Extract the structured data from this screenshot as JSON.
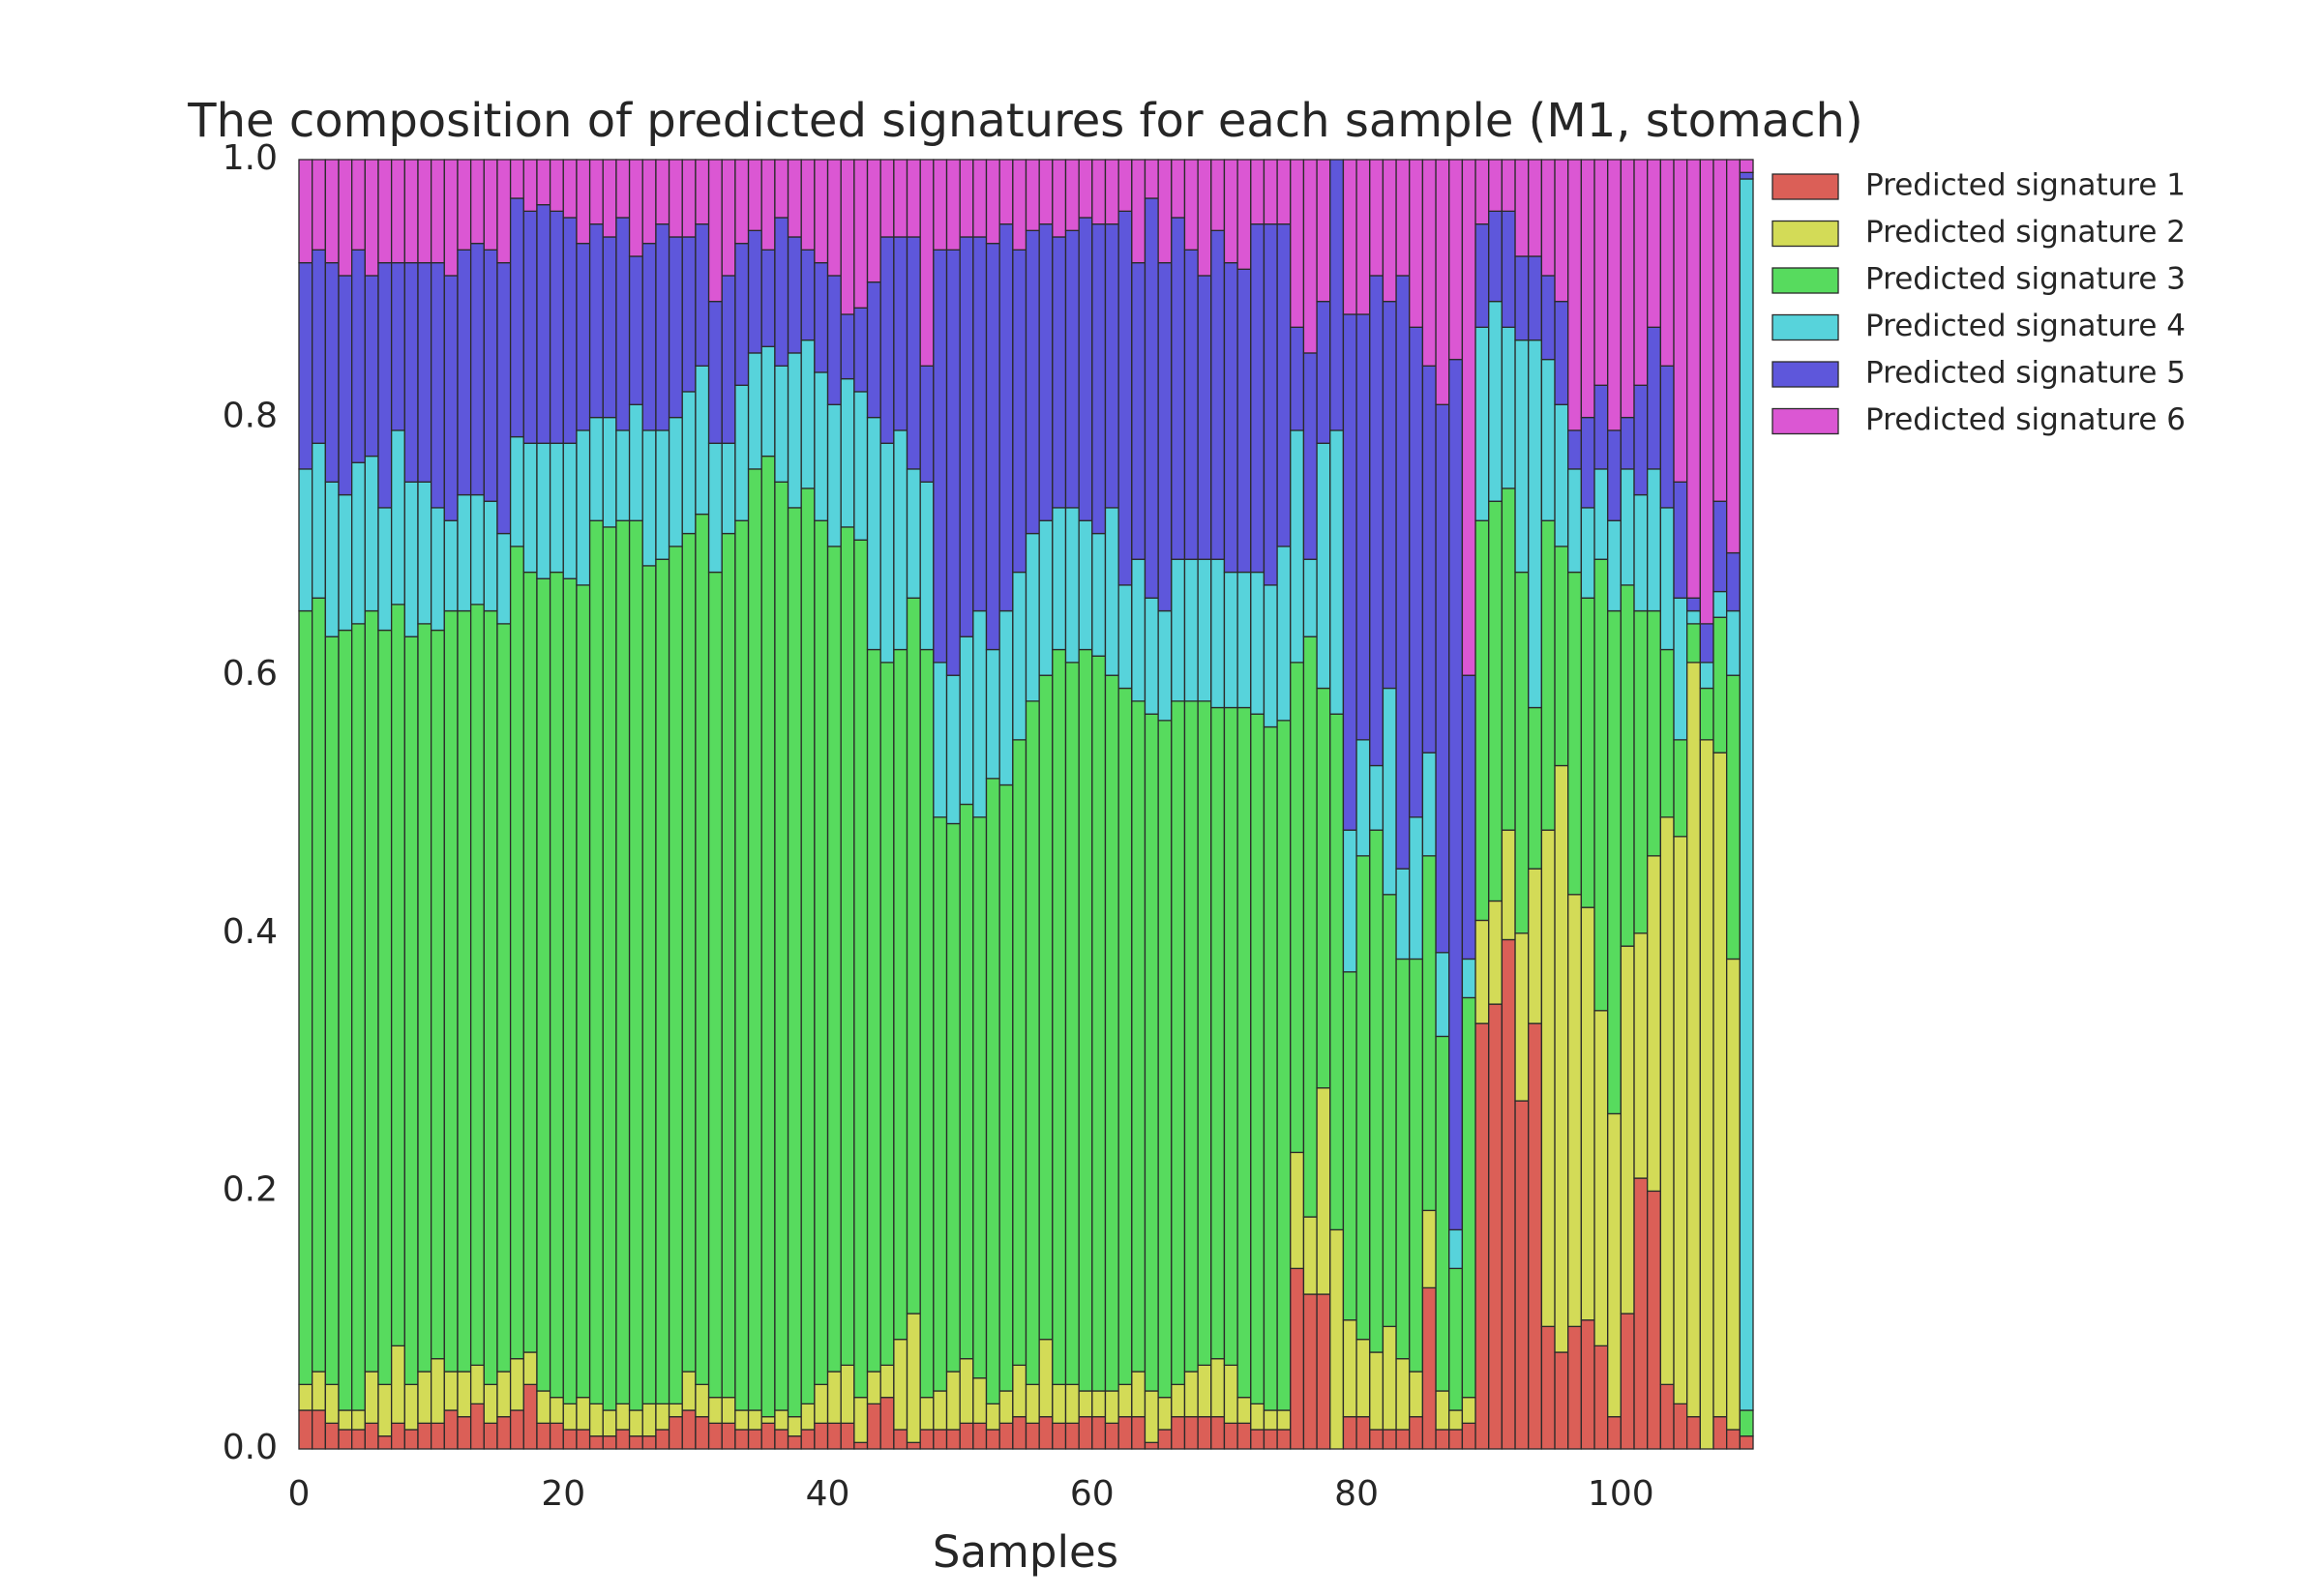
{
  "chart_data": {
    "type": "stacked_bar",
    "title": "The composition of predicted signatures for each sample (M1, stomach)",
    "x_label": "Samples",
    "x": [
      0,
      1,
      2,
      3,
      4,
      5,
      6,
      7,
      8,
      9,
      10,
      11,
      12,
      13,
      14,
      15,
      16,
      17,
      18,
      19,
      20,
      21,
      22,
      23,
      24,
      25,
      26,
      27,
      28,
      29,
      30,
      31,
      32,
      33,
      34,
      35,
      36,
      37,
      38,
      39,
      40,
      41,
      42,
      43,
      44,
      45,
      46,
      47,
      48,
      49,
      50,
      51,
      52,
      53,
      54,
      55,
      56,
      57,
      58,
      59,
      60,
      61,
      62,
      63,
      64,
      65,
      66,
      67,
      68,
      69,
      70,
      71,
      72,
      73,
      74,
      75,
      76,
      77,
      78,
      79,
      80,
      81,
      82,
      83,
      84,
      85,
      86,
      87,
      88,
      89,
      90,
      91,
      92,
      93,
      94,
      95,
      96,
      97,
      98,
      99,
      100,
      101,
      102,
      103,
      104,
      105,
      106,
      107,
      108,
      109
    ],
    "xlim": [
      0,
      110
    ],
    "xticks": [
      0,
      20,
      40,
      60,
      80,
      100
    ],
    "ylim": [
      0,
      1
    ],
    "yticks": [
      {
        "value": 0,
        "label": "0.0"
      },
      {
        "value": 0.2,
        "label": "0.2"
      },
      {
        "value": 0.4,
        "label": "0.4"
      },
      {
        "value": 0.6,
        "label": "0.6"
      },
      {
        "value": 0.8,
        "label": "0.8"
      },
      {
        "value": 1,
        "label": "1.0"
      }
    ],
    "legend": "outside-right",
    "series": [
      {
        "name": "Predicted signature 1",
        "color": "#db5f57",
        "values": [
          0.03,
          0.03,
          0.02,
          0.015,
          0.015,
          0.02,
          0.01,
          0.02,
          0.015,
          0.02,
          0.02,
          0.03,
          0.025,
          0.035,
          0.02,
          0.025,
          0.03,
          0.05,
          0.02,
          0.02,
          0.015,
          0.015,
          0.01,
          0.01,
          0.015,
          0.01,
          0.01,
          0.015,
          0.025,
          0.03,
          0.025,
          0.02,
          0.02,
          0.015,
          0.015,
          0.02,
          0.015,
          0.01,
          0.015,
          0.02,
          0.02,
          0.02,
          0.005,
          0.035,
          0.04,
          0.015,
          0.005,
          0.015,
          0.015,
          0.015,
          0.02,
          0.02,
          0.015,
          0.02,
          0.025,
          0.02,
          0.025,
          0.02,
          0.02,
          0.025,
          0.025,
          0.02,
          0.025,
          0.025,
          0.005,
          0.015,
          0.025,
          0.025,
          0.025,
          0.025,
          0.02,
          0.02,
          0.015,
          0.015,
          0.015,
          0.14,
          0.12,
          0.12,
          0,
          0.025,
          0.025,
          0.015,
          0.015,
          0.015,
          0.025,
          0.125,
          0.015,
          0.015,
          0.02,
          0.33,
          0.345,
          0.395,
          0.27,
          0.33,
          0.095,
          0.075,
          0.095,
          0.1,
          0.08,
          0.025,
          0.105,
          0.21,
          0.2,
          0.05,
          0.035,
          0.025,
          0,
          0.025,
          0.015,
          0.01
        ]
      },
      {
        "name": "Predicted signature 2",
        "color": "#d3db57",
        "values": [
          0.02,
          0.03,
          0.03,
          0.015,
          0.015,
          0.04,
          0.04,
          0.06,
          0.035,
          0.04,
          0.05,
          0.03,
          0.035,
          0.03,
          0.03,
          0.035,
          0.04,
          0.025,
          0.025,
          0.02,
          0.02,
          0.025,
          0.025,
          0.02,
          0.02,
          0.02,
          0.025,
          0.02,
          0.01,
          0.03,
          0.025,
          0.02,
          0.02,
          0.015,
          0.015,
          0.005,
          0.015,
          0.015,
          0.02,
          0.03,
          0.04,
          0.045,
          0.035,
          0.025,
          0.025,
          0.07,
          0.1,
          0.025,
          0.03,
          0.045,
          0.05,
          0.035,
          0.02,
          0.025,
          0.04,
          0.03,
          0.06,
          0.03,
          0.03,
          0.02,
          0.02,
          0.025,
          0.025,
          0.035,
          0.04,
          0.025,
          0.025,
          0.035,
          0.04,
          0.045,
          0.045,
          0.02,
          0.02,
          0.015,
          0.015,
          0.09,
          0.06,
          0.16,
          0.17,
          0.075,
          0.06,
          0.06,
          0.08,
          0.055,
          0.035,
          0.06,
          0.03,
          0.015,
          0.02,
          0.08,
          0.08,
          0.085,
          0.13,
          0.12,
          0.385,
          0.455,
          0.335,
          0.32,
          0.26,
          0.235,
          0.285,
          0.19,
          0.26,
          0.44,
          0.44,
          0.585,
          0.55,
          0.515,
          0.365,
          0
        ]
      },
      {
        "name": "Predicted signature 3",
        "color": "#57db5e",
        "values": [
          0.6,
          0.6,
          0.58,
          0.605,
          0.61,
          0.59,
          0.585,
          0.575,
          0.58,
          0.58,
          0.565,
          0.59,
          0.59,
          0.59,
          0.6,
          0.58,
          0.63,
          0.605,
          0.63,
          0.64,
          0.64,
          0.63,
          0.685,
          0.685,
          0.685,
          0.69,
          0.65,
          0.655,
          0.665,
          0.65,
          0.675,
          0.64,
          0.67,
          0.69,
          0.73,
          0.745,
          0.72,
          0.705,
          0.71,
          0.67,
          0.64,
          0.65,
          0.665,
          0.56,
          0.545,
          0.535,
          0.555,
          0.58,
          0.445,
          0.425,
          0.43,
          0.435,
          0.485,
          0.47,
          0.485,
          0.53,
          0.515,
          0.57,
          0.56,
          0.575,
          0.57,
          0.555,
          0.54,
          0.52,
          0.525,
          0.525,
          0.53,
          0.52,
          0.515,
          0.505,
          0.51,
          0.535,
          0.535,
          0.53,
          0.535,
          0.38,
          0.45,
          0.31,
          0.4,
          0.27,
          0.375,
          0.405,
          0.335,
          0.31,
          0.32,
          0.275,
          0.275,
          0.11,
          0.31,
          0.31,
          0.31,
          0.265,
          0.28,
          0.125,
          0.24,
          0.17,
          0.25,
          0.24,
          0.35,
          0.39,
          0.28,
          0.25,
          0.19,
          0.13,
          0.075,
          0.03,
          0.04,
          0.105,
          0.22,
          0.02
        ]
      },
      {
        "name": "Predicted signature 4",
        "color": "#57d3db",
        "values": [
          0.11,
          0.12,
          0.12,
          0.105,
          0.125,
          0.12,
          0.095,
          0.135,
          0.12,
          0.11,
          0.095,
          0.07,
          0.09,
          0.085,
          0.085,
          0.07,
          0.085,
          0.1,
          0.105,
          0.1,
          0.105,
          0.12,
          0.08,
          0.085,
          0.07,
          0.09,
          0.105,
          0.1,
          0.1,
          0.11,
          0.115,
          0.1,
          0.07,
          0.105,
          0.09,
          0.085,
          0.09,
          0.12,
          0.115,
          0.115,
          0.11,
          0.115,
          0.115,
          0.18,
          0.17,
          0.17,
          0.1,
          0.13,
          0.12,
          0.115,
          0.13,
          0.16,
          0.1,
          0.135,
          0.13,
          0.13,
          0.12,
          0.11,
          0.12,
          0.1,
          0.095,
          0.13,
          0.08,
          0.11,
          0.09,
          0.085,
          0.11,
          0.11,
          0.11,
          0.115,
          0.105,
          0.105,
          0.11,
          0.11,
          0.135,
          0.18,
          0.06,
          0.19,
          0.22,
          0.11,
          0.09,
          0.05,
          0.16,
          0.07,
          0.11,
          0.08,
          0.065,
          0.03,
          0.03,
          0.15,
          0.155,
          0.125,
          0.18,
          0.285,
          0.125,
          0.11,
          0.08,
          0.07,
          0.07,
          0.07,
          0.09,
          0.09,
          0.11,
          0.11,
          0.11,
          0.01,
          0.02,
          0.02,
          0.05,
          0.955
        ]
      },
      {
        "name": "Predicted signature 5",
        "color": "#5e57db",
        "values": [
          0.16,
          0.15,
          0.17,
          0.17,
          0.165,
          0.14,
          0.19,
          0.13,
          0.17,
          0.17,
          0.19,
          0.19,
          0.19,
          0.195,
          0.195,
          0.21,
          0.185,
          0.18,
          0.185,
          0.18,
          0.175,
          0.145,
          0.15,
          0.14,
          0.165,
          0.115,
          0.145,
          0.16,
          0.14,
          0.12,
          0.11,
          0.11,
          0.13,
          0.11,
          0.095,
          0.075,
          0.115,
          0.09,
          0.07,
          0.085,
          0.1,
          0.05,
          0.065,
          0.105,
          0.16,
          0.15,
          0.18,
          0.09,
          0.32,
          0.33,
          0.31,
          0.29,
          0.315,
          0.3,
          0.25,
          0.235,
          0.23,
          0.21,
          0.215,
          0.235,
          0.24,
          0.22,
          0.29,
          0.23,
          0.31,
          0.27,
          0.265,
          0.24,
          0.22,
          0.255,
          0.24,
          0.235,
          0.27,
          0.28,
          0.25,
          0.08,
          0.16,
          0.11,
          0.21,
          0.4,
          0.33,
          0.38,
          0.3,
          0.46,
          0.38,
          0.3,
          0.425,
          0.675,
          0.22,
          0.08,
          0.07,
          0.09,
          0.065,
          0.065,
          0.065,
          0.08,
          0.03,
          0.07,
          0.065,
          0.07,
          0.04,
          0.085,
          0.11,
          0.11,
          0.09,
          0.01,
          0.03,
          0.07,
          0.045,
          0.005
        ]
      },
      {
        "name": "Predicted signature 6",
        "color": "#db57d3",
        "values": [
          0.08,
          0.07,
          0.08,
          0.09,
          0.07,
          0.09,
          0.08,
          0.08,
          0.08,
          0.08,
          0.08,
          0.09,
          0.07,
          0.065,
          0.07,
          0.08,
          0.03,
          0.04,
          0.035,
          0.04,
          0.045,
          0.065,
          0.05,
          0.06,
          0.045,
          0.075,
          0.065,
          0.05,
          0.06,
          0.06,
          0.05,
          0.11,
          0.09,
          0.065,
          0.055,
          0.07,
          0.045,
          0.06,
          0.07,
          0.08,
          0.09,
          0.12,
          0.115,
          0.095,
          0.06,
          0.06,
          0.06,
          0.16,
          0.07,
          0.07,
          0.06,
          0.06,
          0.065,
          0.05,
          0.07,
          0.055,
          0.05,
          0.06,
          0.055,
          0.045,
          0.05,
          0.05,
          0.04,
          0.08,
          0.03,
          0.08,
          0.045,
          0.07,
          0.09,
          0.055,
          0.08,
          0.085,
          0.05,
          0.05,
          0.05,
          0.13,
          0.15,
          0.11,
          0,
          0.12,
          0.12,
          0.09,
          0.11,
          0.09,
          0.13,
          0.16,
          0.19,
          0.155,
          0.4,
          0.05,
          0.04,
          0.04,
          0.075,
          0.075,
          0.09,
          0.11,
          0.21,
          0.2,
          0.175,
          0.21,
          0.2,
          0.175,
          0.13,
          0.16,
          0.25,
          0.34,
          0.36,
          0.265,
          0.305,
          0.01
        ]
      }
    ]
  }
}
